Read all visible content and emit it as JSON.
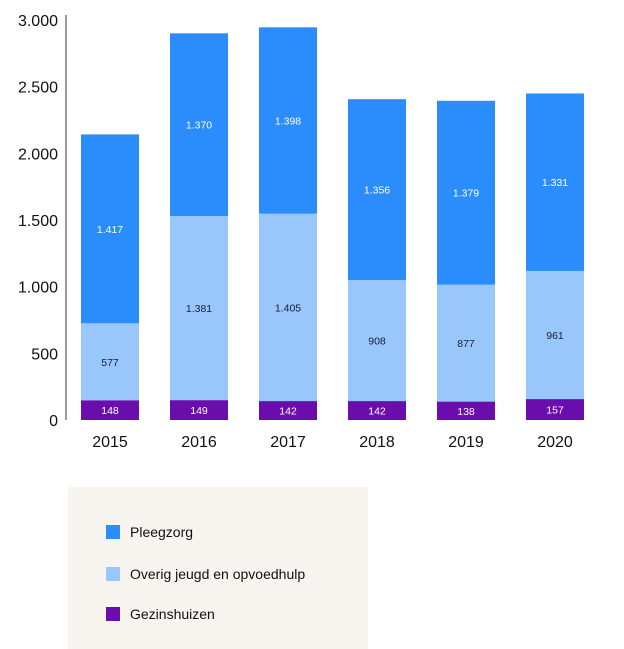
{
  "chart_data": {
    "type": "bar",
    "stacked": true,
    "categories": [
      "2015",
      "2016",
      "2017",
      "2018",
      "2019",
      "2020"
    ],
    "series": [
      {
        "name": "Gezinshuizen",
        "color": "#6a0dad",
        "label_color": "#ffffff",
        "values": [
          148,
          149,
          142,
          142,
          138,
          157
        ],
        "labels": [
          "148",
          "149",
          "142",
          "142",
          "138",
          "157"
        ]
      },
      {
        "name": "Overig jeugd en opvoedhulp",
        "color": "#99c6fb",
        "label_color": "#1b1b3a",
        "values": [
          577,
          1381,
          1405,
          908,
          877,
          961
        ],
        "labels": [
          "577",
          "1.381",
          "1.405",
          "908",
          "877",
          "961"
        ]
      },
      {
        "name": "Pleegzorg",
        "color": "#2b8cfb",
        "label_color": "#ffffff",
        "values": [
          1417,
          1370,
          1398,
          1356,
          1379,
          1331
        ],
        "labels": [
          "1.417",
          "1.370",
          "1.398",
          "1.356",
          "1.379",
          "1.331"
        ]
      }
    ],
    "ylim": [
      0,
      3000
    ],
    "yticks": [
      0,
      500,
      1000,
      1500,
      2000,
      2500,
      3000
    ],
    "ytick_labels": [
      "0",
      "500",
      "1.000",
      "1.500",
      "2.000",
      "2.500",
      "3.000"
    ],
    "title": "",
    "xlabel": "",
    "ylabel": "",
    "grid": false,
    "legend_position": "bottom-left"
  },
  "legend": {
    "items": [
      {
        "label": "Pleegzorg",
        "color": "#2b8cfb"
      },
      {
        "label": "Overig jeugd en opvoedhulp",
        "color": "#99c6fb"
      },
      {
        "label": "Gezinshuizen",
        "color": "#6a0dad"
      }
    ]
  }
}
